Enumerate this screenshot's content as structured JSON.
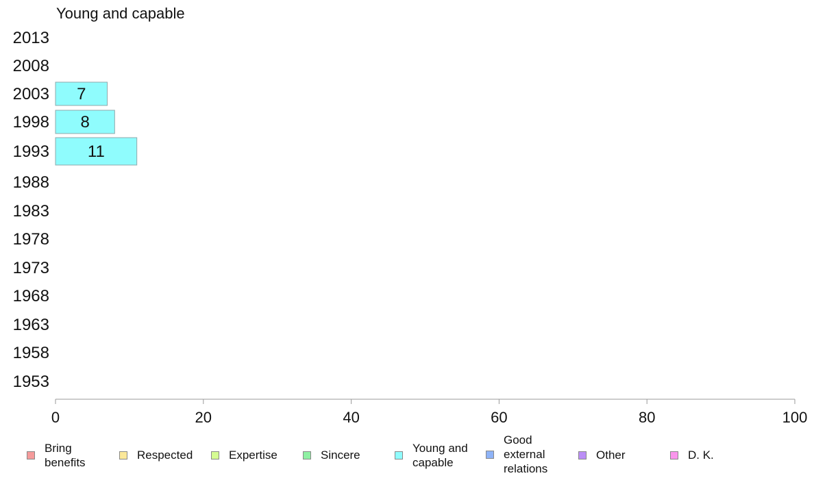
{
  "chart_data": {
    "type": "bar",
    "orientation": "horizontal",
    "title": "Young and capable",
    "categories": [
      "2013",
      "2008",
      "2003",
      "1998",
      "1993",
      "1988",
      "1983",
      "1978",
      "1973",
      "1968",
      "1963",
      "1958",
      "1953"
    ],
    "series": [
      {
        "name": "Young and capable",
        "color": "#8ffcfd",
        "values": [
          null,
          null,
          7,
          8,
          11,
          null,
          null,
          null,
          null,
          null,
          null,
          null,
          null
        ]
      }
    ],
    "data_labels": [
      "",
      "",
      "7",
      "8",
      "11",
      "",
      "",
      "",
      "",
      "",
      "",
      "",
      ""
    ],
    "xlim": [
      0,
      100
    ],
    "xticks": [
      0,
      20,
      40,
      60,
      80,
      100
    ],
    "xtick_labels": [
      "0",
      "20",
      "40",
      "60",
      "80",
      "100"
    ],
    "grid": false,
    "legend_position": "bottom"
  },
  "legend": [
    {
      "label": "Bring\nbenefits",
      "color": "#f59b9b"
    },
    {
      "label": "Respected",
      "color": "#fbe89a"
    },
    {
      "label": "Expertise",
      "color": "#d5fc93"
    },
    {
      "label": "Sincere",
      "color": "#8ff0a3"
    },
    {
      "label": "Young and\ncapable",
      "color": "#8ffcfd"
    },
    {
      "label": "Good\nexternal\nrelations",
      "color": "#8eb3f7"
    },
    {
      "label": "Other",
      "color": "#bb8ef6"
    },
    {
      "label": "D. K.",
      "color": "#fa95ec"
    }
  ]
}
